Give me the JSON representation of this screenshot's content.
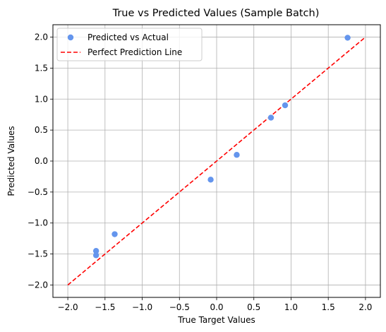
{
  "chart_data": {
    "type": "scatter",
    "title": "True vs Predicted Values (Sample Batch)",
    "xlabel": "True Target Values",
    "ylabel": "Predicted Values",
    "xlim": [
      -2.2,
      2.2
    ],
    "ylim": [
      -2.2,
      2.2
    ],
    "xticks": [
      -2.0,
      -1.5,
      -1.0,
      -0.5,
      0.0,
      0.5,
      1.0,
      1.5,
      2.0
    ],
    "yticks": [
      -2.0,
      -1.5,
      -1.0,
      -0.5,
      0.0,
      0.5,
      1.0,
      1.5,
      2.0
    ],
    "xtick_labels": [
      "−2.0",
      "−1.5",
      "−1.0",
      "−0.5",
      "0.0",
      "0.5",
      "1.0",
      "1.5",
      "2.0"
    ],
    "ytick_labels": [
      "−2.0",
      "−1.5",
      "−1.0",
      "−0.5",
      "0.0",
      "0.5",
      "1.0",
      "1.5",
      "2.0"
    ],
    "grid": true,
    "legend_position": "upper-left",
    "series": [
      {
        "name": "Predicted vs Actual",
        "kind": "scatter",
        "color": "#6495ed",
        "points": [
          {
            "x": -1.62,
            "y": -1.45
          },
          {
            "x": -1.62,
            "y": -1.52
          },
          {
            "x": -1.37,
            "y": -1.18
          },
          {
            "x": -0.08,
            "y": -0.3
          },
          {
            "x": 0.27,
            "y": 0.1
          },
          {
            "x": 0.73,
            "y": 0.7
          },
          {
            "x": 0.92,
            "y": 0.9
          },
          {
            "x": 1.76,
            "y": 1.99
          }
        ]
      },
      {
        "name": "Perfect Prediction Line",
        "kind": "line",
        "style": "dashed",
        "color": "#ff0000",
        "points": [
          {
            "x": -2.0,
            "y": -2.0
          },
          {
            "x": 2.0,
            "y": 2.0
          }
        ]
      }
    ]
  }
}
